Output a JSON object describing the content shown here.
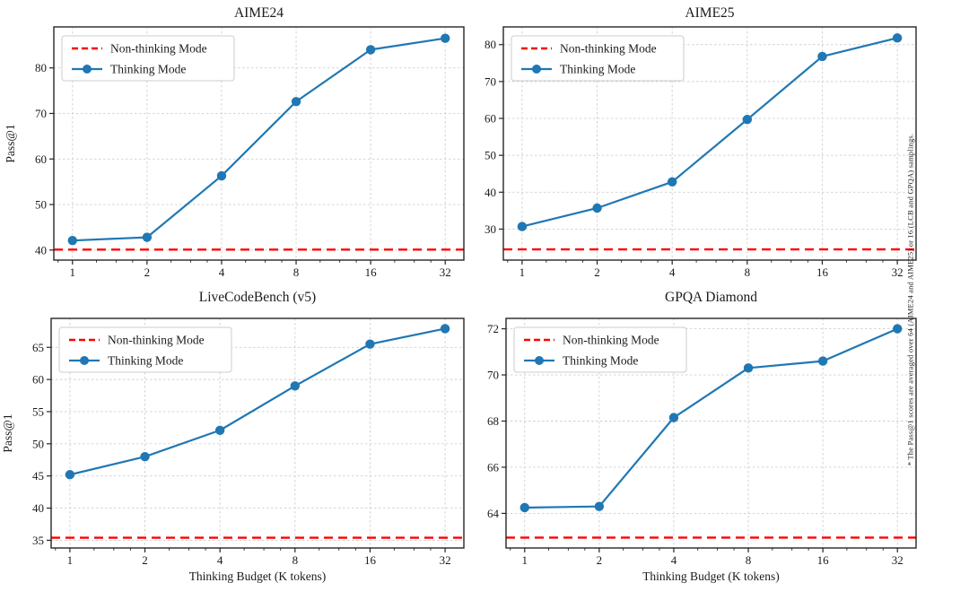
{
  "figure": {
    "side_note": "* The Pass@1 scores are averaged over 64 (AIME24 and AIME25) or 16 (LCB and GPQA) samplings.",
    "colors": {
      "thinking_line": "#1f77b4",
      "non_thinking_line": "#ff0000",
      "grid": "#cfcfcf",
      "spine": "#262626",
      "text": "#1a1a1a",
      "legend_border": "#cccccc",
      "legend_bg": "#ffffff"
    },
    "legend": {
      "non_thinking_label": "Non-thinking Mode",
      "thinking_label": "Thinking Mode"
    }
  },
  "chart_data": [
    {
      "type": "line",
      "title": "AIME24",
      "xscale": "log2",
      "x": [
        1,
        2,
        4,
        8,
        16,
        32
      ],
      "xticks": [
        1,
        2,
        4,
        8,
        16,
        32
      ],
      "series": [
        {
          "name": "Thinking Mode",
          "color": "#1f77b4",
          "values": [
            42.1,
            42.8,
            56.3,
            72.6,
            84.0,
            86.5
          ]
        }
      ],
      "baseline": {
        "name": "Non-thinking Mode",
        "color": "#ff0000",
        "value": 40.1
      },
      "xlabel": "",
      "ylabel": "Pass@1",
      "yticks": [
        40,
        50,
        60,
        70,
        80
      ],
      "ylim": [
        37.8,
        89.0
      ],
      "grid": true,
      "legend_position": "upper left"
    },
    {
      "type": "line",
      "title": "AIME25",
      "xscale": "log2",
      "x": [
        1,
        2,
        4,
        8,
        16,
        32
      ],
      "xticks": [
        1,
        2,
        4,
        8,
        16,
        32
      ],
      "series": [
        {
          "name": "Thinking Mode",
          "color": "#1f77b4",
          "values": [
            30.7,
            35.7,
            42.8,
            59.7,
            76.8,
            81.8
          ]
        }
      ],
      "baseline": {
        "name": "Non-thinking Mode",
        "color": "#ff0000",
        "value": 24.5
      },
      "xlabel": "",
      "ylabel": "",
      "yticks": [
        30,
        40,
        50,
        60,
        70,
        80
      ],
      "ylim": [
        21.6,
        84.8
      ],
      "grid": true,
      "legend_position": "upper left"
    },
    {
      "type": "line",
      "title": "LiveCodeBench (v5)",
      "xscale": "log2",
      "x": [
        1,
        2,
        4,
        8,
        16,
        32
      ],
      "xticks": [
        1,
        2,
        4,
        8,
        16,
        32
      ],
      "series": [
        {
          "name": "Thinking Mode",
          "color": "#1f77b4",
          "values": [
            45.2,
            48.0,
            52.1,
            59.0,
            65.5,
            67.9
          ]
        }
      ],
      "baseline": {
        "name": "Non-thinking Mode",
        "color": "#ff0000",
        "value": 35.4
      },
      "xlabel": "Thinking Budget (K tokens)",
      "ylabel": "Pass@1",
      "yticks": [
        35,
        40,
        45,
        50,
        55,
        60,
        65
      ],
      "ylim": [
        33.8,
        69.5
      ],
      "grid": true,
      "legend_position": "upper left"
    },
    {
      "type": "line",
      "title": "GPQA Diamond",
      "xscale": "log2",
      "x": [
        1,
        2,
        4,
        8,
        16,
        32
      ],
      "xticks": [
        1,
        2,
        4,
        8,
        16,
        32
      ],
      "series": [
        {
          "name": "Thinking Mode",
          "color": "#1f77b4",
          "values": [
            64.25,
            64.3,
            68.15,
            70.3,
            70.6,
            72.0
          ]
        }
      ],
      "baseline": {
        "name": "Non-thinking Mode",
        "color": "#ff0000",
        "value": 62.95
      },
      "xlabel": "Thinking Budget (K tokens)",
      "ylabel": "",
      "yticks": [
        64,
        66,
        68,
        70,
        72
      ],
      "ylim": [
        62.5,
        72.45
      ],
      "grid": true,
      "legend_position": "upper left"
    }
  ]
}
